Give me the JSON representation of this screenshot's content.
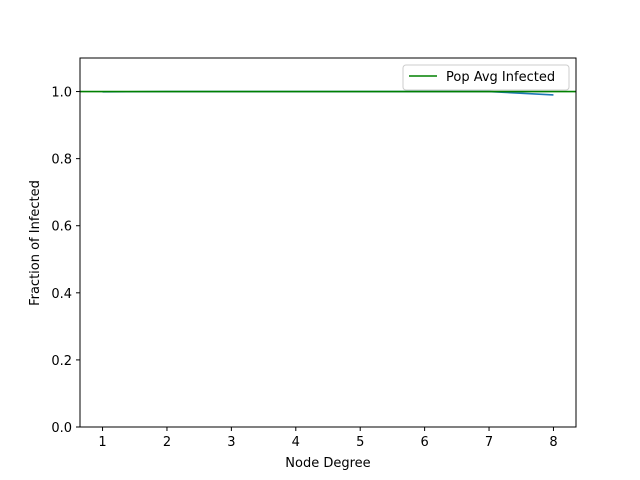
{
  "chart_data": {
    "type": "line",
    "title": "",
    "xlabel": "Node Degree",
    "ylabel": "Fraction of Infected",
    "xlim": [
      0.65,
      8.35
    ],
    "ylim": [
      0.0,
      1.1
    ],
    "xticks": [
      1,
      2,
      3,
      4,
      5,
      6,
      7,
      8
    ],
    "yticks": [
      0.0,
      0.2,
      0.4,
      0.6,
      0.8,
      1.0
    ],
    "xtick_labels": [
      "1",
      "2",
      "3",
      "4",
      "5",
      "6",
      "7",
      "8"
    ],
    "ytick_labels": [
      "0.0",
      "0.2",
      "0.4",
      "0.6",
      "0.8",
      "1.0"
    ],
    "grid": false,
    "legend_position": "top-right",
    "series": [
      {
        "color": "#1f77b4",
        "x": [
          1,
          2,
          3,
          4,
          5,
          6,
          7,
          8
        ],
        "y": [
          0.999,
          1.0,
          1.0,
          1.0,
          1.0,
          1.0,
          1.0,
          0.99
        ]
      }
    ],
    "hlines": [
      {
        "name": "Pop Avg Infected",
        "y": 1.0,
        "color": "#008000"
      }
    ],
    "legend": [
      {
        "label": "Pop Avg Infected",
        "color": "#008000"
      }
    ]
  }
}
